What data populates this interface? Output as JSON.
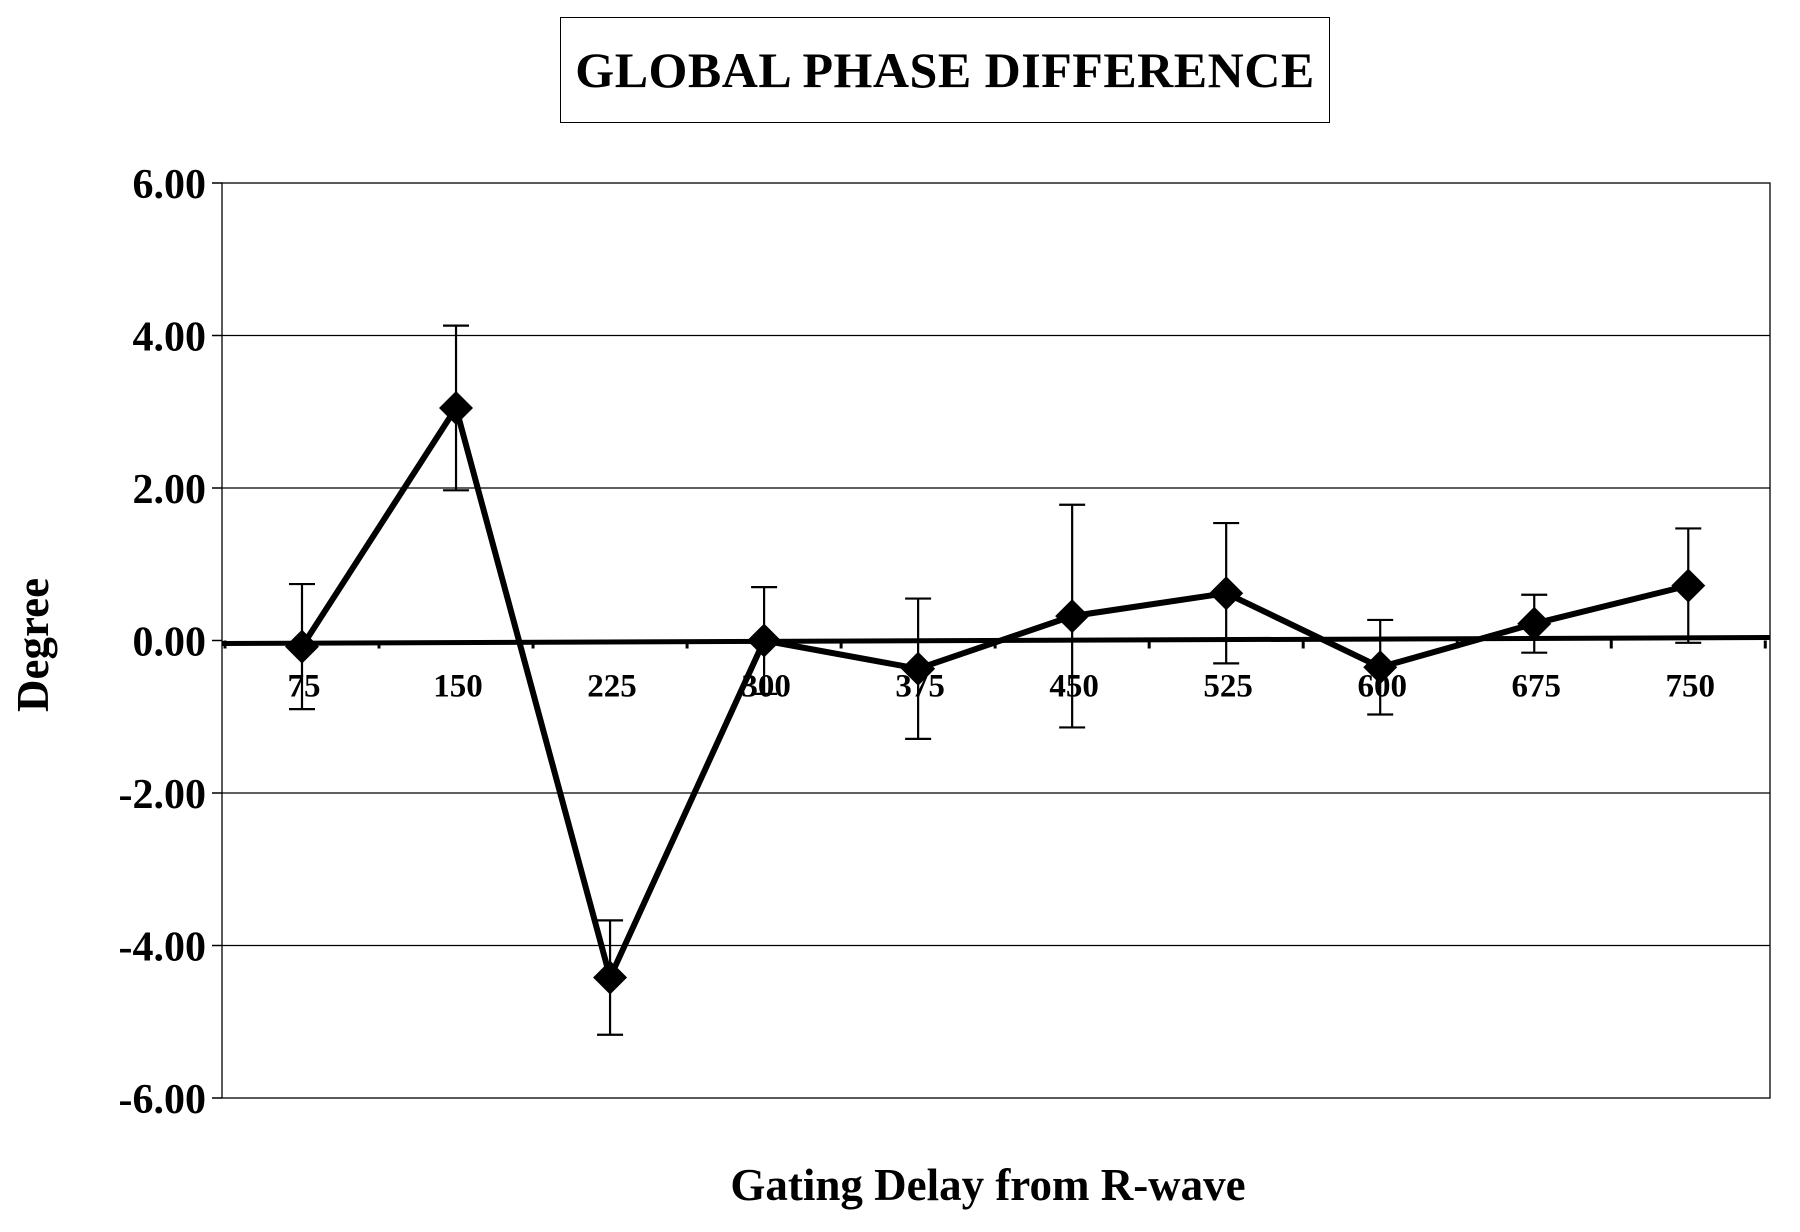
{
  "chart_data": {
    "type": "line",
    "title": "GLOBAL PHASE DIFFERENCE",
    "xlabel": "Gating Delay from R-wave",
    "ylabel": "Degree",
    "categories": [
      "75",
      "150",
      "225",
      "300",
      "375",
      "450",
      "525",
      "600",
      "675",
      "750"
    ],
    "series": [
      {
        "values": [
          -0.08,
          3.05,
          -4.42,
          0.0,
          -0.37,
          0.32,
          0.62,
          -0.35,
          0.22,
          0.72
        ],
        "error": [
          0.82,
          1.08,
          0.75,
          0.7,
          0.92,
          1.46,
          0.92,
          0.62,
          0.38,
          0.75
        ]
      }
    ],
    "ylim": [
      -6,
      6
    ],
    "yticks": [
      "6.00",
      "4.00",
      "2.00",
      "0.00",
      "-2.00",
      "-4.00",
      "-6.00"
    ],
    "ytick_values": [
      6,
      4,
      2,
      0,
      -2,
      -4,
      -6
    ],
    "grid": "horizontal",
    "marker": "diamond",
    "line_color": "#000000"
  }
}
